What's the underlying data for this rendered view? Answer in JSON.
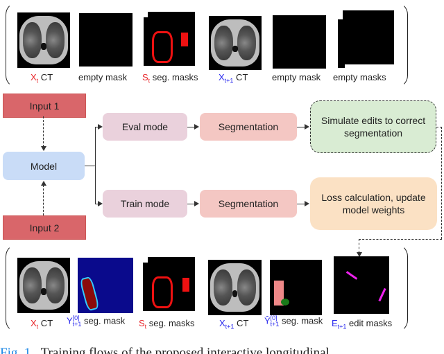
{
  "top_panel": {
    "items": [
      {
        "var": "X",
        "sub": "t",
        "text": " CT",
        "var_color": "#e8262a",
        "image": "ct-scan"
      },
      {
        "text": "empty mask",
        "image": "empty-mask"
      },
      {
        "var": "S",
        "sub": "t",
        "text": " seg. masks",
        "var_color": "#e8262a",
        "image": "seg-masks-red"
      },
      {
        "var": "X",
        "sub": "t+1",
        "text": " CT",
        "var_color": "#2a2aee",
        "image": "ct-scan"
      },
      {
        "text": "empty mask",
        "image": "empty-mask"
      },
      {
        "text": "empty masks",
        "image": "empty-masks-stack"
      }
    ]
  },
  "flow": {
    "input1": "Input 1",
    "input2": "Input 2",
    "model": "Model",
    "eval_mode": "Eval mode",
    "train_mode": "Train mode",
    "segmentation_eval": "Segmentation",
    "segmentation_train": "Segmentation",
    "simulate": "Simulate edits to correct segmentation",
    "loss": "Loss calculation, update model weights",
    "colors": {
      "input": "#d9666a",
      "model": "#c9dcf7",
      "mode": "#ead1dc",
      "segmentation": "#f4c7c3",
      "simulate": "#d9ecd3",
      "loss": "#fbe1c4"
    }
  },
  "bottom_panel": {
    "items": [
      {
        "var": "X",
        "sub": "t",
        "text": " CT",
        "var_color": "#e8262a",
        "image": "ct-scan"
      },
      {
        "var": "Y",
        "sup": "[0]",
        "sub": "t+1",
        "text": " seg. mask",
        "var_color": "#2a2aee",
        "image": "probability-map"
      },
      {
        "var": "S",
        "sub": "t",
        "text": " seg. masks",
        "var_color": "#e8262a",
        "image": "seg-masks-red"
      },
      {
        "var": "X",
        "sub": "t+1",
        "text": " CT",
        "var_color": "#2a2aee",
        "image": "ct-scan"
      },
      {
        "var": "Ŷ",
        "sup": "[0]",
        "sub": "t+1",
        "text": " seg. mask",
        "var_color": "#2a2aee",
        "image": "binary-seg-mask"
      },
      {
        "var": "E",
        "sub": "t+1",
        "text": " edit masks",
        "var_color": "#2a2aee",
        "image": "edit-masks"
      }
    ]
  },
  "caption": {
    "label": "Fig. 1.",
    "text": "Training flows of the proposed interactive longitudinal"
  }
}
